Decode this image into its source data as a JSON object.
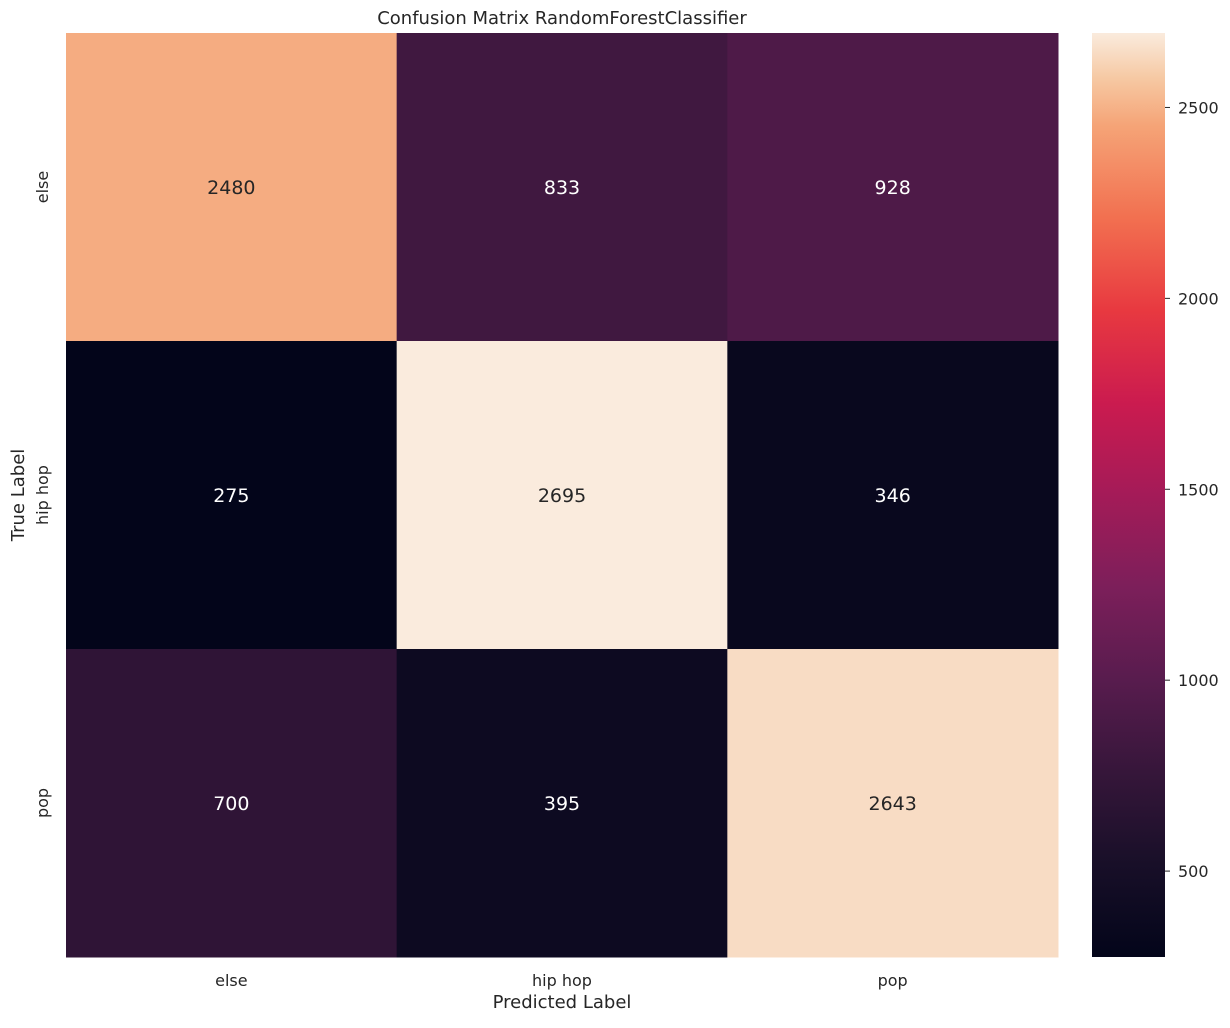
{
  "chart_data": {
    "type": "heatmap",
    "title": "Confusion Matrix RandomForestClassifier",
    "xlabel": "Predicted Label",
    "ylabel": "True Label",
    "x_categories": [
      "else",
      "hip hop",
      "pop"
    ],
    "y_categories": [
      "else",
      "hip hop",
      "pop"
    ],
    "values": [
      [
        2480,
        833,
        928
      ],
      [
        275,
        2695,
        346
      ],
      [
        700,
        395,
        2643
      ]
    ],
    "colorbar": {
      "colormap": "rocket",
      "vmin": 275,
      "vmax": 2695,
      "ticks": [
        500,
        1000,
        1500,
        2000,
        2500
      ],
      "tick_labels": [
        "500",
        "1000",
        "1500",
        "2000",
        "2500"
      ]
    },
    "grid": false
  }
}
